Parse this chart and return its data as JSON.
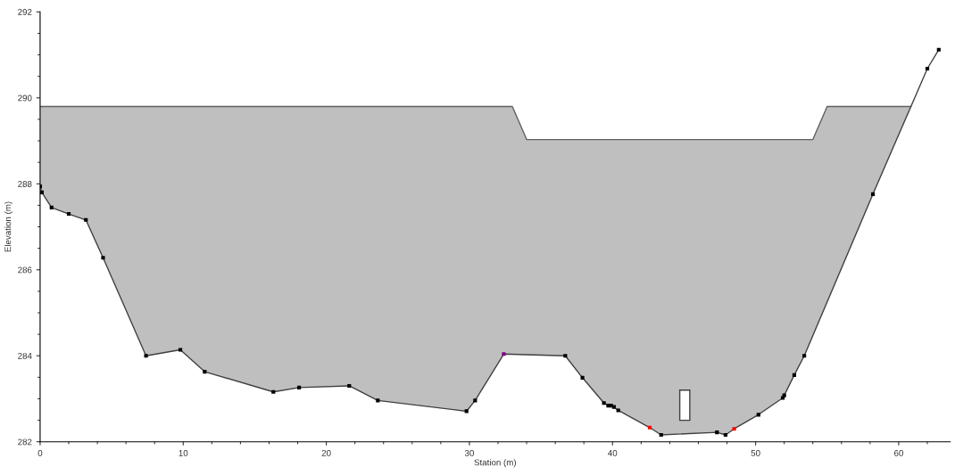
{
  "chart_data": {
    "type": "line",
    "xlabel": "Station (m)",
    "ylabel": "Elevation (m)",
    "xlim": [
      0,
      63.6
    ],
    "ylim": [
      282,
      292
    ],
    "xticks": [
      0,
      10,
      20,
      30,
      40,
      50,
      60
    ],
    "yticks": [
      282,
      284,
      286,
      288,
      290,
      292
    ],
    "grid": false,
    "legend": false,
    "series": [
      {
        "color": "#606060",
        "x": [
          0,
          0.12,
          0.8,
          2.0,
          3.2,
          4.4,
          7.4,
          9.8,
          11.5,
          16.3,
          18.1,
          21.6,
          23.6,
          29.8,
          30.4,
          32.4,
          33.0,
          34.0,
          36.7,
          37.9,
          39.4,
          39.7,
          39.9,
          40.1,
          40.4,
          42.6,
          43.4,
          47.3,
          47.9,
          48.5,
          50.2,
          51.9,
          52.0,
          52.7,
          53.4,
          54.0,
          55.0,
          58.2,
          60.85
        ],
        "values": [
          289.8,
          289.8,
          289.8,
          289.8,
          289.8,
          289.8,
          289.8,
          289.8,
          289.8,
          289.8,
          289.8,
          289.8,
          289.8,
          289.8,
          289.8,
          289.8,
          289.8,
          289.03,
          289.03,
          289.03,
          289.03,
          289.03,
          289.03,
          289.03,
          289.03,
          289.03,
          289.03,
          289.03,
          289.03,
          289.03,
          289.03,
          289.03,
          289.03,
          289.03,
          289.03,
          289.03,
          289.8,
          289.8,
          289.8
        ],
        "upper": [
          289.8,
          289.8,
          289.8,
          289.8,
          289.8,
          289.8,
          289.8,
          289.8,
          289.8,
          289.8,
          289.8,
          289.8,
          289.8,
          289.8,
          289.8,
          289.8,
          289.8,
          289.03,
          289.03,
          289.03,
          289.03,
          289.03,
          289.03,
          289.03,
          289.03,
          289.03,
          289.03,
          289.03,
          289.03,
          289.03,
          289.03,
          289.03,
          289.03,
          289.03,
          289.03,
          289.03,
          289.8,
          289.8,
          289.8
        ],
        "lower": [
          287.94,
          287.8,
          287.45,
          287.3,
          287.16,
          286.28,
          284.0,
          284.14,
          283.63,
          283.16,
          283.26,
          283.3,
          282.96,
          282.71,
          282.96,
          284.04,
          284.03,
          284.02,
          284.0,
          283.49,
          282.9,
          282.84,
          282.84,
          282.81,
          282.73,
          282.33,
          282.16,
          282.22,
          282.16,
          282.3,
          282.63,
          283.02,
          283.08,
          283.55,
          284.0,
          284.47,
          285.25,
          287.76,
          289.8
        ]
      },
      {
        "type": "line",
        "marker": "square",
        "color": "#000000",
        "x": [
          0,
          0.12,
          0.8,
          2.0,
          3.2,
          4.4,
          7.4,
          9.8,
          11.5,
          16.3,
          18.1,
          21.6,
          23.6,
          29.8,
          30.4,
          32.4,
          36.7,
          37.9,
          39.4,
          39.7,
          39.9,
          40.1,
          40.4,
          42.6,
          43.4,
          47.3,
          47.9,
          48.5,
          50.2,
          51.9,
          52.0,
          52.7,
          53.4,
          58.2,
          62.0,
          62.8
        ],
        "values": [
          287.94,
          287.8,
          287.45,
          287.3,
          287.16,
          286.28,
          284.0,
          284.14,
          283.63,
          283.16,
          283.26,
          283.3,
          282.96,
          282.71,
          282.96,
          284.04,
          284.0,
          283.49,
          282.9,
          282.84,
          282.84,
          282.81,
          282.73,
          282.33,
          282.16,
          282.22,
          282.16,
          282.3,
          282.63,
          283.02,
          283.08,
          283.55,
          284.0,
          287.76,
          290.68,
          291.12
        ],
        "colors": [
          "#000000",
          "#000000",
          "#000000",
          "#000000",
          "#000000",
          "#000000",
          "#000000",
          "#000000",
          "#000000",
          "#000000",
          "#000000",
          "#000000",
          "#000000",
          "#000000",
          "#000000",
          "#800080",
          "#000000",
          "#000000",
          "#000000",
          "#000000",
          "#000000",
          "#000000",
          "#000000",
          "#ff0000",
          "#000000",
          "#000000",
          "#000000",
          "#ff0000",
          "#000000",
          "#000000",
          "#000000",
          "#000000",
          "#000000",
          "#000000",
          "#000000",
          "#000000"
        ]
      },
      {
        "type": "bar",
        "color": "#ffffff",
        "x": [
          45.05
        ],
        "base": [
          282.5
        ],
        "values": [
          0.7
        ]
      }
    ]
  }
}
